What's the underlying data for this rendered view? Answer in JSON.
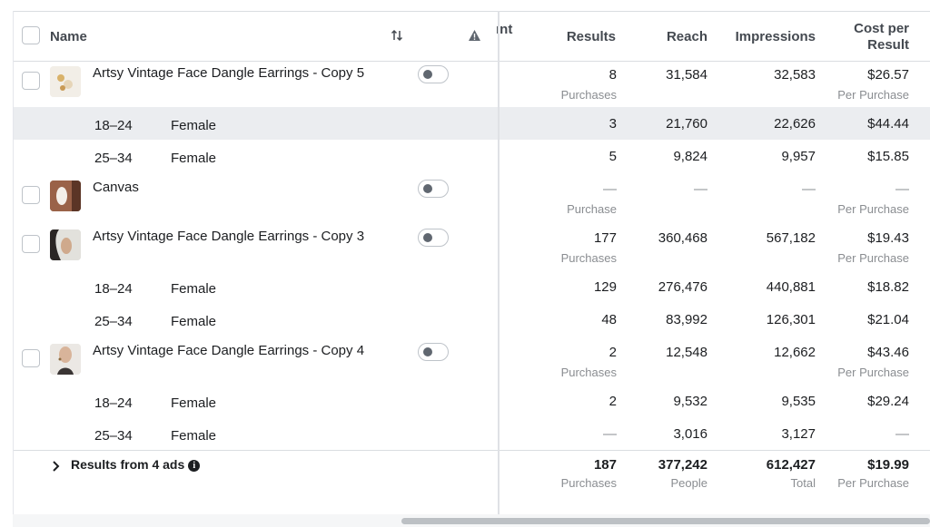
{
  "header": {
    "name": "Name",
    "cut": "ınt",
    "results": "Results",
    "reach": "Reach",
    "impressions": "Impressions",
    "cost_line1": "Cost per",
    "cost_line2": "Result"
  },
  "icons": {
    "sort": "sort-icon",
    "warning": "warning-icon",
    "chevron": "chevron-right-icon",
    "info": "info-icon"
  },
  "rows": [
    {
      "name": "Artsy Vintage Face Dangle Earrings - Copy 5",
      "results": "8",
      "results_sub": "Purchases",
      "reach": "31,584",
      "impressions": "32,583",
      "cost": "$26.57",
      "cost_sub": "Per Purchase"
    },
    {
      "age": "18–24",
      "gender": "Female",
      "results": "3",
      "reach": "21,760",
      "impressions": "22,626",
      "cost": "$44.44"
    },
    {
      "age": "25–34",
      "gender": "Female",
      "results": "5",
      "reach": "9,824",
      "impressions": "9,957",
      "cost": "$15.85"
    },
    {
      "name": "Canvas",
      "results": "—",
      "results_sub": "Purchase",
      "reach": "—",
      "impressions": "—",
      "cost": "—",
      "cost_sub": "Per Purchase"
    },
    {
      "name": "Artsy Vintage Face Dangle Earrings - Copy 3",
      "results": "177",
      "results_sub": "Purchases",
      "reach": "360,468",
      "impressions": "567,182",
      "cost": "$19.43",
      "cost_sub": "Per Purchase"
    },
    {
      "age": "18–24",
      "gender": "Female",
      "results": "129",
      "reach": "276,476",
      "impressions": "440,881",
      "cost": "$18.82"
    },
    {
      "age": "25–34",
      "gender": "Female",
      "results": "48",
      "reach": "83,992",
      "impressions": "126,301",
      "cost": "$21.04"
    },
    {
      "name": "Artsy Vintage Face Dangle Earrings - Copy 4",
      "results": "2",
      "results_sub": "Purchases",
      "reach": "12,548",
      "impressions": "12,662",
      "cost": "$43.46",
      "cost_sub": "Per Purchase"
    },
    {
      "age": "18–24",
      "gender": "Female",
      "results": "2",
      "reach": "9,532",
      "impressions": "9,535",
      "cost": "$29.24"
    },
    {
      "age": "25–34",
      "gender": "Female",
      "results": "—",
      "reach": "3,016",
      "impressions": "3,127",
      "cost": "—"
    }
  ],
  "totals": {
    "label": "Results from 4 ads",
    "results": "187",
    "results_sub": "Purchases",
    "reach": "377,242",
    "reach_sub": "People",
    "impressions": "612,427",
    "impressions_sub": "Total",
    "cost": "$19.99",
    "cost_sub": "Per Purchase"
  }
}
